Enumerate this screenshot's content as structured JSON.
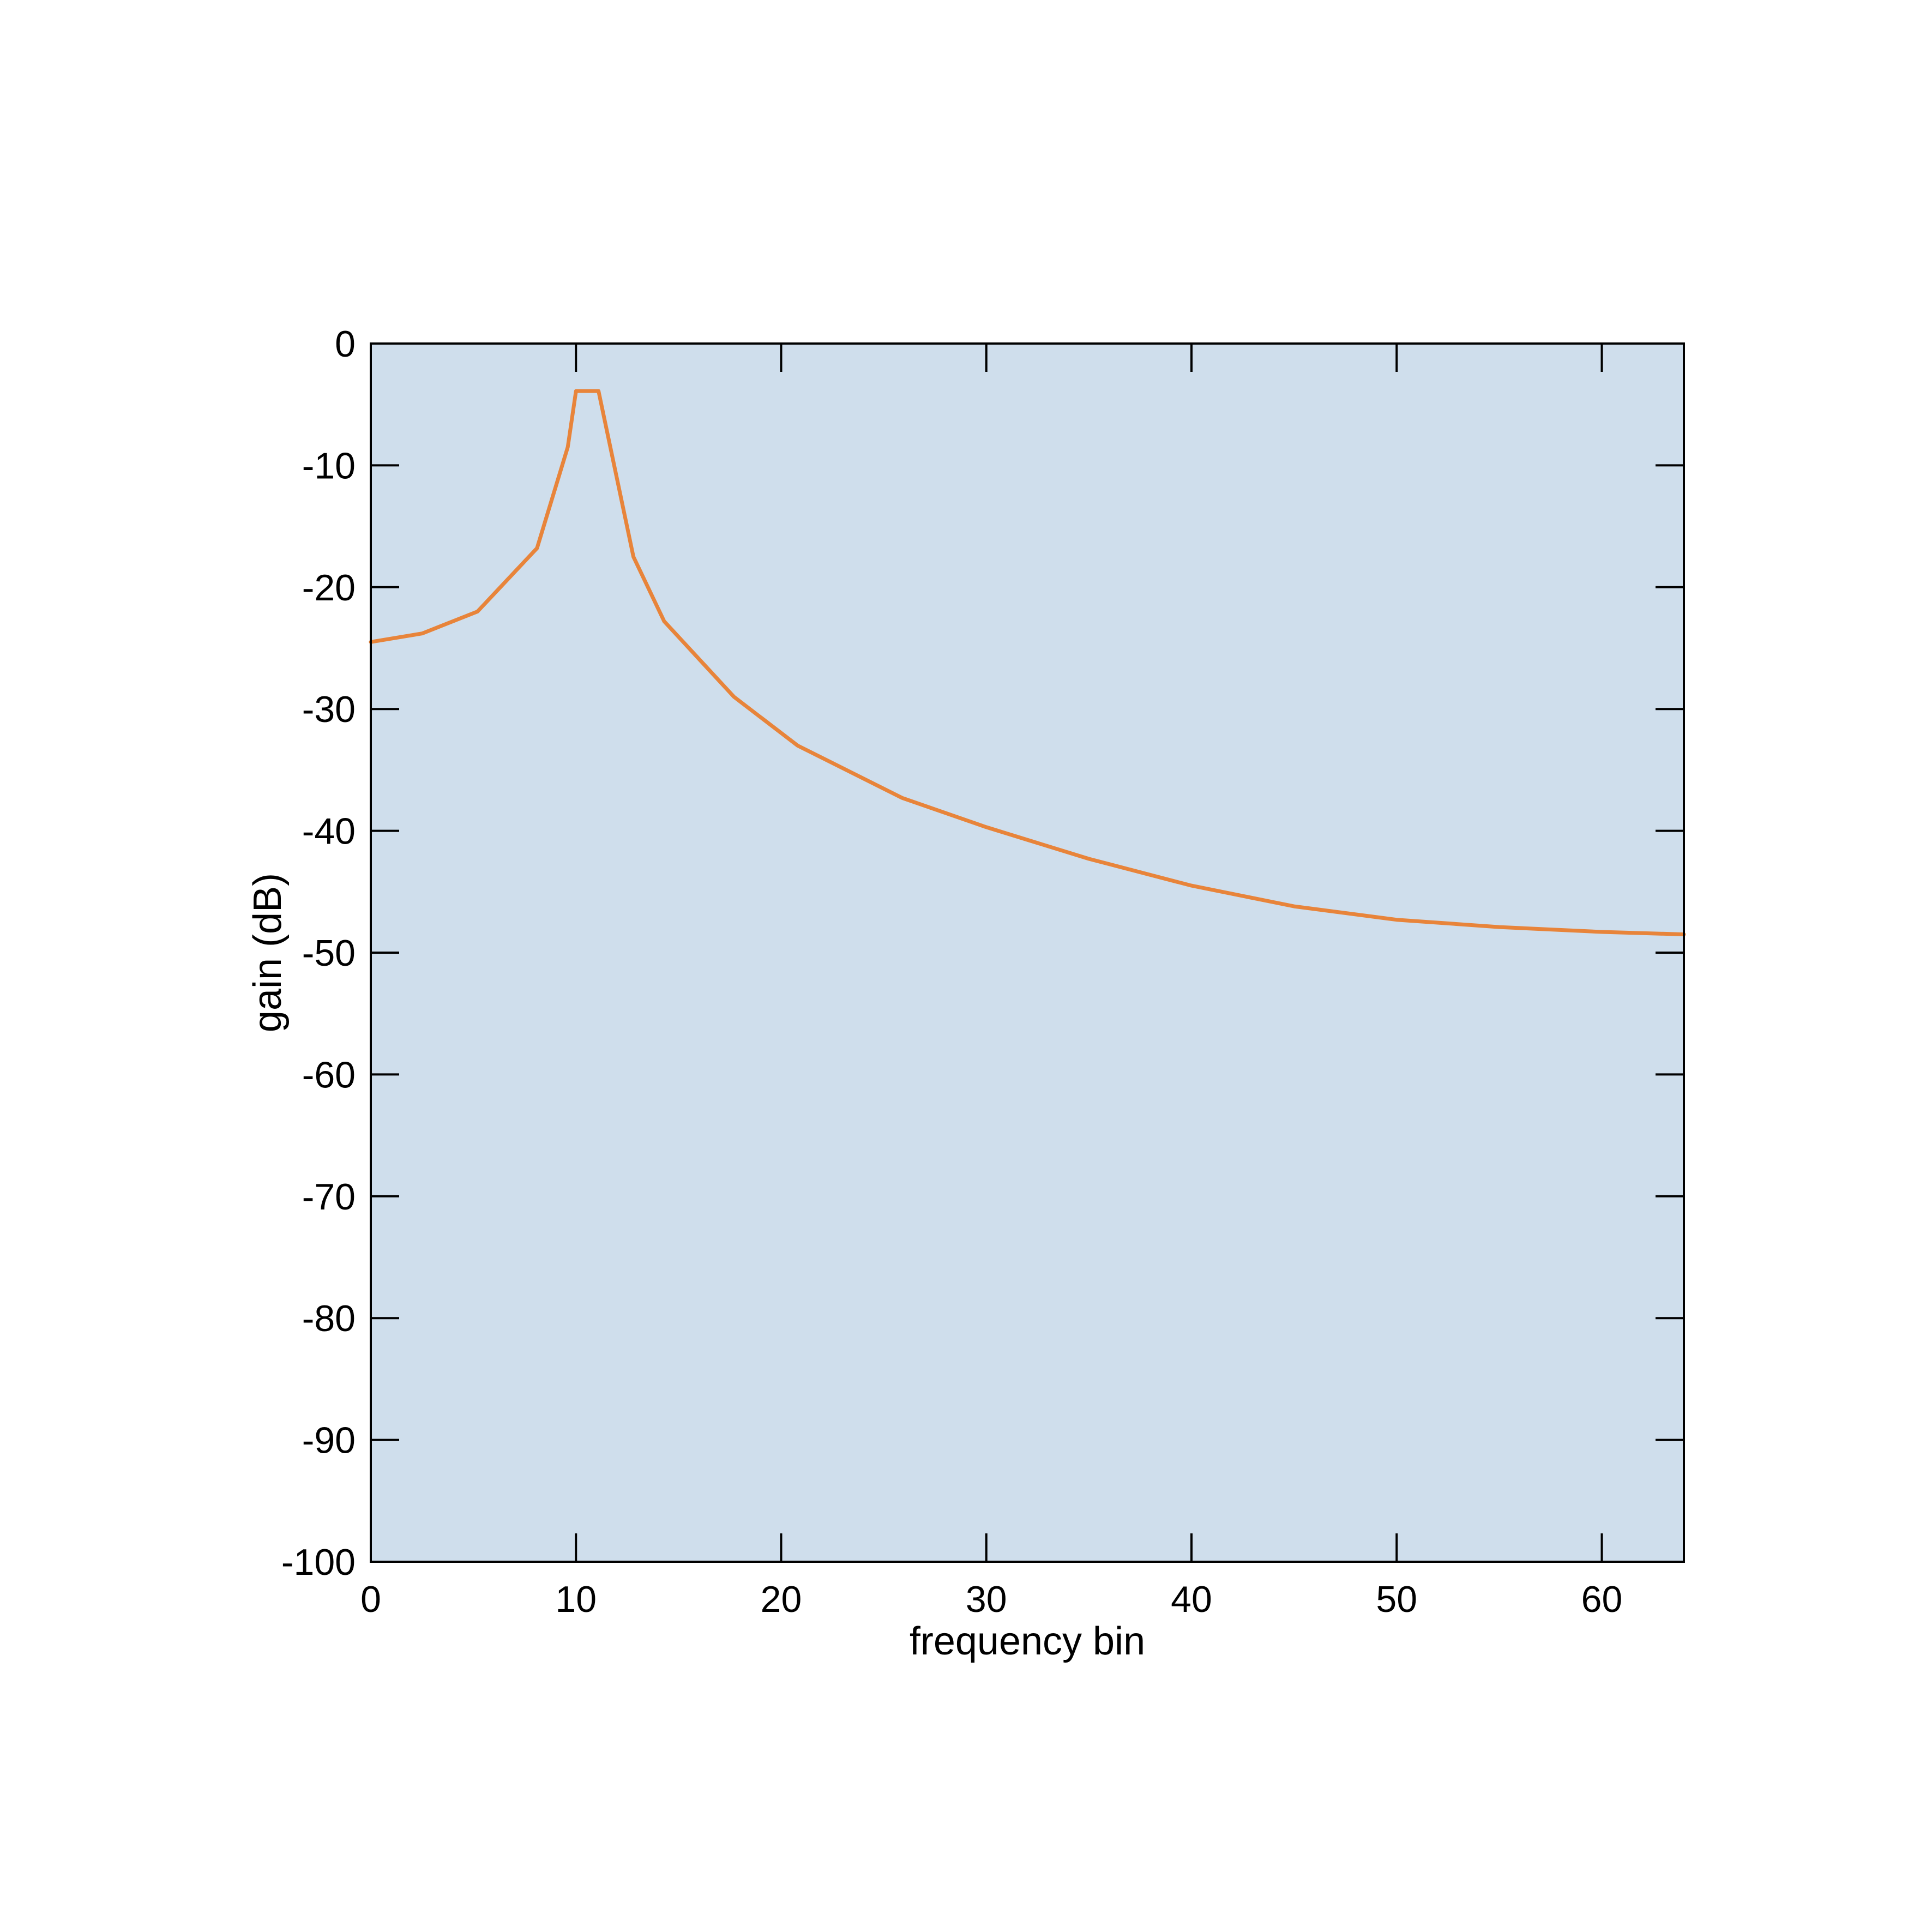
{
  "chart_data": {
    "type": "line",
    "title": "",
    "xlabel": "frequency bin",
    "ylabel": "gain (dB)",
    "xlim": [
      0,
      64
    ],
    "ylim": [
      -100,
      0
    ],
    "x_ticks": [
      0,
      10,
      20,
      30,
      40,
      50,
      60
    ],
    "x_tick_labels": [
      "0",
      "10",
      "20",
      "30",
      "40",
      "50",
      "60"
    ],
    "y_ticks": [
      0,
      -10,
      -20,
      -30,
      -40,
      -50,
      -60,
      -70,
      -80,
      -90,
      -100
    ],
    "y_tick_labels": [
      "0",
      "-10",
      "-20",
      "-30",
      "-40",
      "-50",
      "-60",
      "-70",
      "-80",
      "-90",
      "-100"
    ],
    "grid": false,
    "legend": "none",
    "colors": {
      "plot_background": "#cfdeec",
      "series_line": "#e8843a",
      "axes": "#000000"
    },
    "series": [
      {
        "x": [
          0,
          2.5,
          5.2,
          8.1,
          9.6,
          10.0,
          10.8,
          11.1,
          12.8,
          14.3,
          17.7,
          20.8,
          25.9,
          30,
          35,
          40,
          45,
          50,
          55,
          60,
          64
        ],
        "y": [
          -24.5,
          -23.8,
          -22.0,
          -16.8,
          -8.5,
          -3.9,
          -3.9,
          -3.9,
          -17.5,
          -22.8,
          -29.0,
          -33.0,
          -37.3,
          -39.7,
          -42.3,
          -44.5,
          -46.2,
          -47.3,
          -47.9,
          -48.3,
          -48.5
        ]
      }
    ]
  }
}
